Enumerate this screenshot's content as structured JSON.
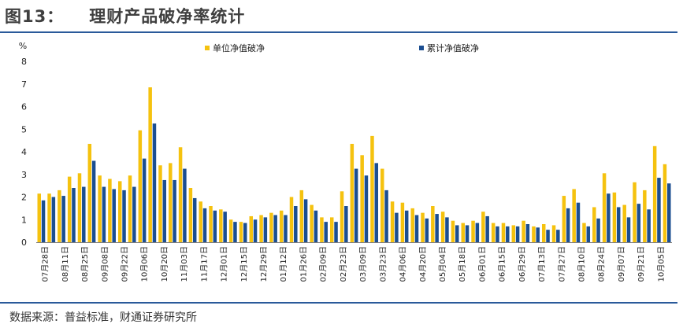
{
  "figure": {
    "title_number": "图13：",
    "title_text": "理财产品破净率统计",
    "source": "数据来源：普益标准，财通证券研究所"
  },
  "colors": {
    "series_1": "#f5c20f",
    "series_2": "#1b4e91",
    "rule": "#2a5a9a"
  },
  "chart_data": {
    "type": "bar",
    "ylabel": "%",
    "ylim": [
      0,
      8
    ],
    "yticks": [
      0,
      1,
      2,
      3,
      4,
      5,
      6,
      7,
      8
    ],
    "grid": false,
    "legend_position": "top",
    "x_tick_labels": [
      "07月28日",
      "08月11日",
      "08月25日",
      "09月08日",
      "09月22日",
      "10月06日",
      "10月20日",
      "11月03日",
      "11月17日",
      "12月01日",
      "12月15日",
      "12月29日",
      "01月12日",
      "01月26日",
      "02月09日",
      "02月23日",
      "03月09日",
      "03月23日",
      "04月06日",
      "04月20日",
      "05月04日",
      "05月18日",
      "06月01日",
      "06月15日",
      "06月29日",
      "07月13日",
      "07月27日",
      "08月10日",
      "08月24日",
      "09月07日",
      "09月21日",
      "10月05日"
    ],
    "series": [
      {
        "name": "单位净值破净",
        "values": [
          2.15,
          2.15,
          2.3,
          2.9,
          3.05,
          4.35,
          2.95,
          2.8,
          2.7,
          2.95,
          4.95,
          6.85,
          3.4,
          3.5,
          4.2,
          2.4,
          1.8,
          1.6,
          1.45,
          1.0,
          0.9,
          1.15,
          1.2,
          1.3,
          1.4,
          2.0,
          2.3,
          1.65,
          1.1,
          1.1,
          2.25,
          4.35,
          3.85,
          4.7,
          3.25,
          1.8,
          1.75,
          1.5,
          1.3,
          1.6,
          1.35,
          0.95,
          0.85,
          0.95,
          1.35,
          0.85,
          0.85,
          0.75,
          0.95,
          0.7,
          0.8,
          0.75,
          2.05,
          2.35,
          0.85,
          1.55,
          3.05,
          2.2,
          1.65,
          2.65,
          2.3,
          4.25,
          3.45
        ]
      },
      {
        "name": "累计净值破净",
        "values": [
          1.85,
          2.0,
          2.05,
          2.4,
          2.45,
          3.6,
          2.45,
          2.35,
          2.3,
          2.45,
          3.7,
          5.25,
          2.75,
          2.75,
          3.25,
          1.95,
          1.5,
          1.4,
          1.35,
          0.9,
          0.85,
          1.0,
          1.1,
          1.2,
          1.2,
          1.6,
          1.9,
          1.4,
          0.9,
          0.9,
          1.6,
          3.25,
          2.95,
          3.5,
          2.3,
          1.3,
          1.4,
          1.2,
          1.05,
          1.25,
          1.1,
          0.75,
          0.75,
          0.85,
          1.15,
          0.7,
          0.7,
          0.7,
          0.8,
          0.65,
          0.55,
          0.55,
          1.5,
          1.75,
          0.7,
          1.05,
          2.15,
          1.55,
          1.1,
          1.7,
          1.45,
          2.85,
          2.6
        ]
      }
    ]
  }
}
